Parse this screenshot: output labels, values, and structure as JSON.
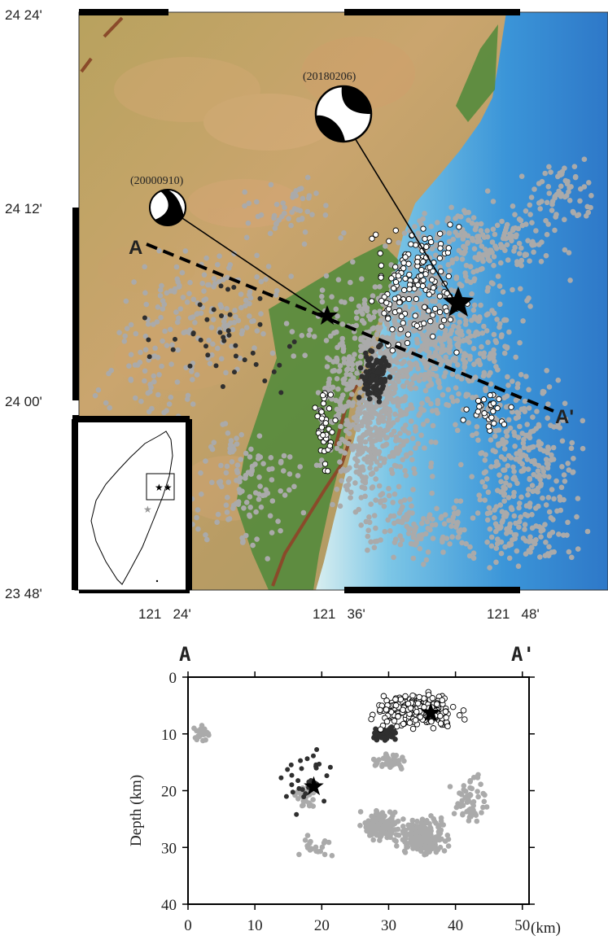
{
  "map": {
    "lat_labels": [
      "24  24'",
      "24  12'",
      "24  00'",
      "23  48'"
    ],
    "lon_labels": [
      "121   24'",
      "121   36'",
      "121   48'"
    ],
    "profile_start": "A",
    "profile_end": "A'",
    "events": [
      {
        "date": "(20000910)",
        "size": "small"
      },
      {
        "date": "(20180206)",
        "size": "large"
      }
    ],
    "colors": {
      "background_seismicity": "#aaaaaa",
      "event_2000_seismicity": "#2f2f2f",
      "event_2018_seismicity": "#ffffff",
      "fault": "#8a4a2a",
      "star": "#000000"
    },
    "inset": {
      "subject": "Taiwan",
      "box": "study area"
    }
  },
  "section": {
    "profile_start": "A",
    "profile_end": "A'",
    "xlabel": "(km)",
    "ylabel": "Depth (km)",
    "xticks": [
      "0",
      "10",
      "20",
      "30",
      "40",
      "50"
    ],
    "yticks": [
      "0",
      "10",
      "20",
      "30",
      "40"
    ]
  },
  "chart_data": {
    "type": "scatter",
    "xlabel": "(km)",
    "ylabel": "Depth (km)",
    "xlim": [
      0,
      51
    ],
    "ylim": [
      40,
      0
    ],
    "stars": [
      {
        "distance_km": 18.8,
        "depth_km": 19.3
      },
      {
        "distance_km": 36.3,
        "depth_km": 6.3
      }
    ]
  }
}
